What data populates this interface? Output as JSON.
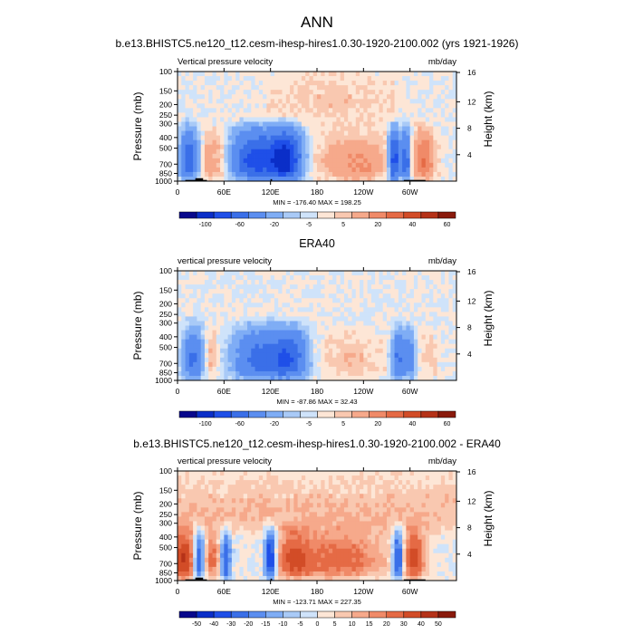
{
  "figure": {
    "title": "ANN"
  },
  "chart_data": [
    {
      "type": "heatmap",
      "title": "b.e13.BHISTC5.ne120_t12.cesm-ihesp-hires1.0.30-1920-2100.002 (yrs 1921-1926)",
      "left_label": "Vertical pressure velocity",
      "right_label": "mb/day",
      "ylabel": "Pressure (mb)",
      "ylabel_right": "Height (km)",
      "y_ticks": [
        "100",
        "150",
        "200",
        "250",
        "300",
        "400",
        "500",
        "700",
        "850",
        "1000"
      ],
      "y_ticks_right": [
        "16",
        "12",
        "8",
        "4"
      ],
      "x_ticks": [
        "0",
        "60E",
        "120E",
        "180",
        "120W",
        "60W"
      ],
      "stats": "MIN = -176.40  MAX = 198.25",
      "colorbar_labels": [
        "-100",
        "-60",
        "-20",
        "-5",
        "5",
        "20",
        "40",
        "60"
      ],
      "xlim": [
        0,
        360
      ],
      "ylim_mb": [
        1000,
        100
      ],
      "field": "model",
      "seed": 7
    },
    {
      "type": "heatmap",
      "title": "ERA40",
      "left_label": "vertical pressure velocity",
      "right_label": "mb/day",
      "ylabel": "Pressure (mb)",
      "ylabel_right": "Height (km)",
      "y_ticks": [
        "100",
        "150",
        "200",
        "250",
        "300",
        "400",
        "500",
        "700",
        "850",
        "1000"
      ],
      "y_ticks_right": [
        "16",
        "12",
        "8",
        "4"
      ],
      "x_ticks": [
        "0",
        "60E",
        "120E",
        "180",
        "120W",
        "60W"
      ],
      "stats": "MIN = -87.86  MAX =  32.43",
      "colorbar_labels": [
        "-100",
        "-60",
        "-20",
        "-5",
        "5",
        "20",
        "40",
        "60"
      ],
      "xlim": [
        0,
        360
      ],
      "ylim_mb": [
        1000,
        100
      ],
      "field": "obs",
      "seed": 13
    },
    {
      "type": "heatmap",
      "title": "b.e13.BHISTC5.ne120_t12.cesm-ihesp-hires1.0.30-1920-2100.002 - ERA40",
      "left_label": "vertical pressure velocity",
      "right_label": "mb/day",
      "ylabel": "Pressure (mb)",
      "ylabel_right": "Height (km)",
      "y_ticks": [
        "100",
        "150",
        "200",
        "250",
        "300",
        "400",
        "500",
        "700",
        "850",
        "1000"
      ],
      "y_ticks_right": [
        "16",
        "12",
        "8",
        "4"
      ],
      "x_ticks": [
        "0",
        "60E",
        "120E",
        "180",
        "120W",
        "60W"
      ],
      "stats": "MIN = -123.71  MAX = 227.35",
      "colorbar_labels": [
        "-50",
        "-40",
        "-30",
        "-20",
        "-15",
        "-10",
        "-5",
        "0",
        "5",
        "10",
        "15",
        "20",
        "30",
        "40",
        "50"
      ],
      "xlim": [
        0,
        360
      ],
      "ylim_mb": [
        1000,
        100
      ],
      "field": "diff",
      "seed": 29
    }
  ],
  "palette": [
    "#08088c",
    "#0a2ec8",
    "#1f4fe8",
    "#3a6fe8",
    "#5b8ef0",
    "#7fadf5",
    "#a9caf7",
    "#cfe3fa",
    "#fde6d6",
    "#f9c8b0",
    "#f6a98b",
    "#f08a68",
    "#e56a45",
    "#d24c27",
    "#b53218",
    "#8a1a0c"
  ]
}
